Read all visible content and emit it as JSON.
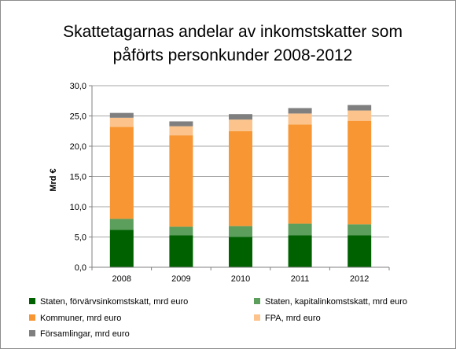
{
  "chart_data": {
    "type": "bar",
    "stacked": true,
    "title": [
      "Skattetagarnas andelar av inkomstskatter som",
      "påförts personkunder 2008-2012"
    ],
    "ylabel": "Mrd €",
    "xlabel": "",
    "ylim": [
      0,
      30
    ],
    "yticks": [
      "0,0",
      "5,0",
      "10,0",
      "15,0",
      "20,0",
      "25,0",
      "30,0"
    ],
    "grid": true,
    "legend_position": "bottom",
    "categories": [
      "2008",
      "2009",
      "2010",
      "2011",
      "2012"
    ],
    "series": [
      {
        "name": "Staten, förvärvsinkomstskatt, mrd euro",
        "color": "#006100",
        "values": [
          6.2,
          5.3,
          5.0,
          5.3,
          5.3
        ]
      },
      {
        "name": "Staten, kapitalinkomstskatt, mrd euro",
        "color": "#5c9e5c",
        "values": [
          1.8,
          1.4,
          1.8,
          1.9,
          1.8
        ]
      },
      {
        "name": "Kommuner, mrd euro",
        "color": "#f79633",
        "values": [
          15.2,
          15.1,
          15.7,
          16.4,
          17.1
        ]
      },
      {
        "name": "FPA, mrd euro",
        "color": "#fcc48c",
        "values": [
          1.5,
          1.5,
          1.9,
          1.8,
          1.7
        ]
      },
      {
        "name": "Församlingar, mrd euro",
        "color": "#7f7f7f",
        "values": [
          0.8,
          0.8,
          0.9,
          0.9,
          0.9
        ]
      }
    ]
  }
}
